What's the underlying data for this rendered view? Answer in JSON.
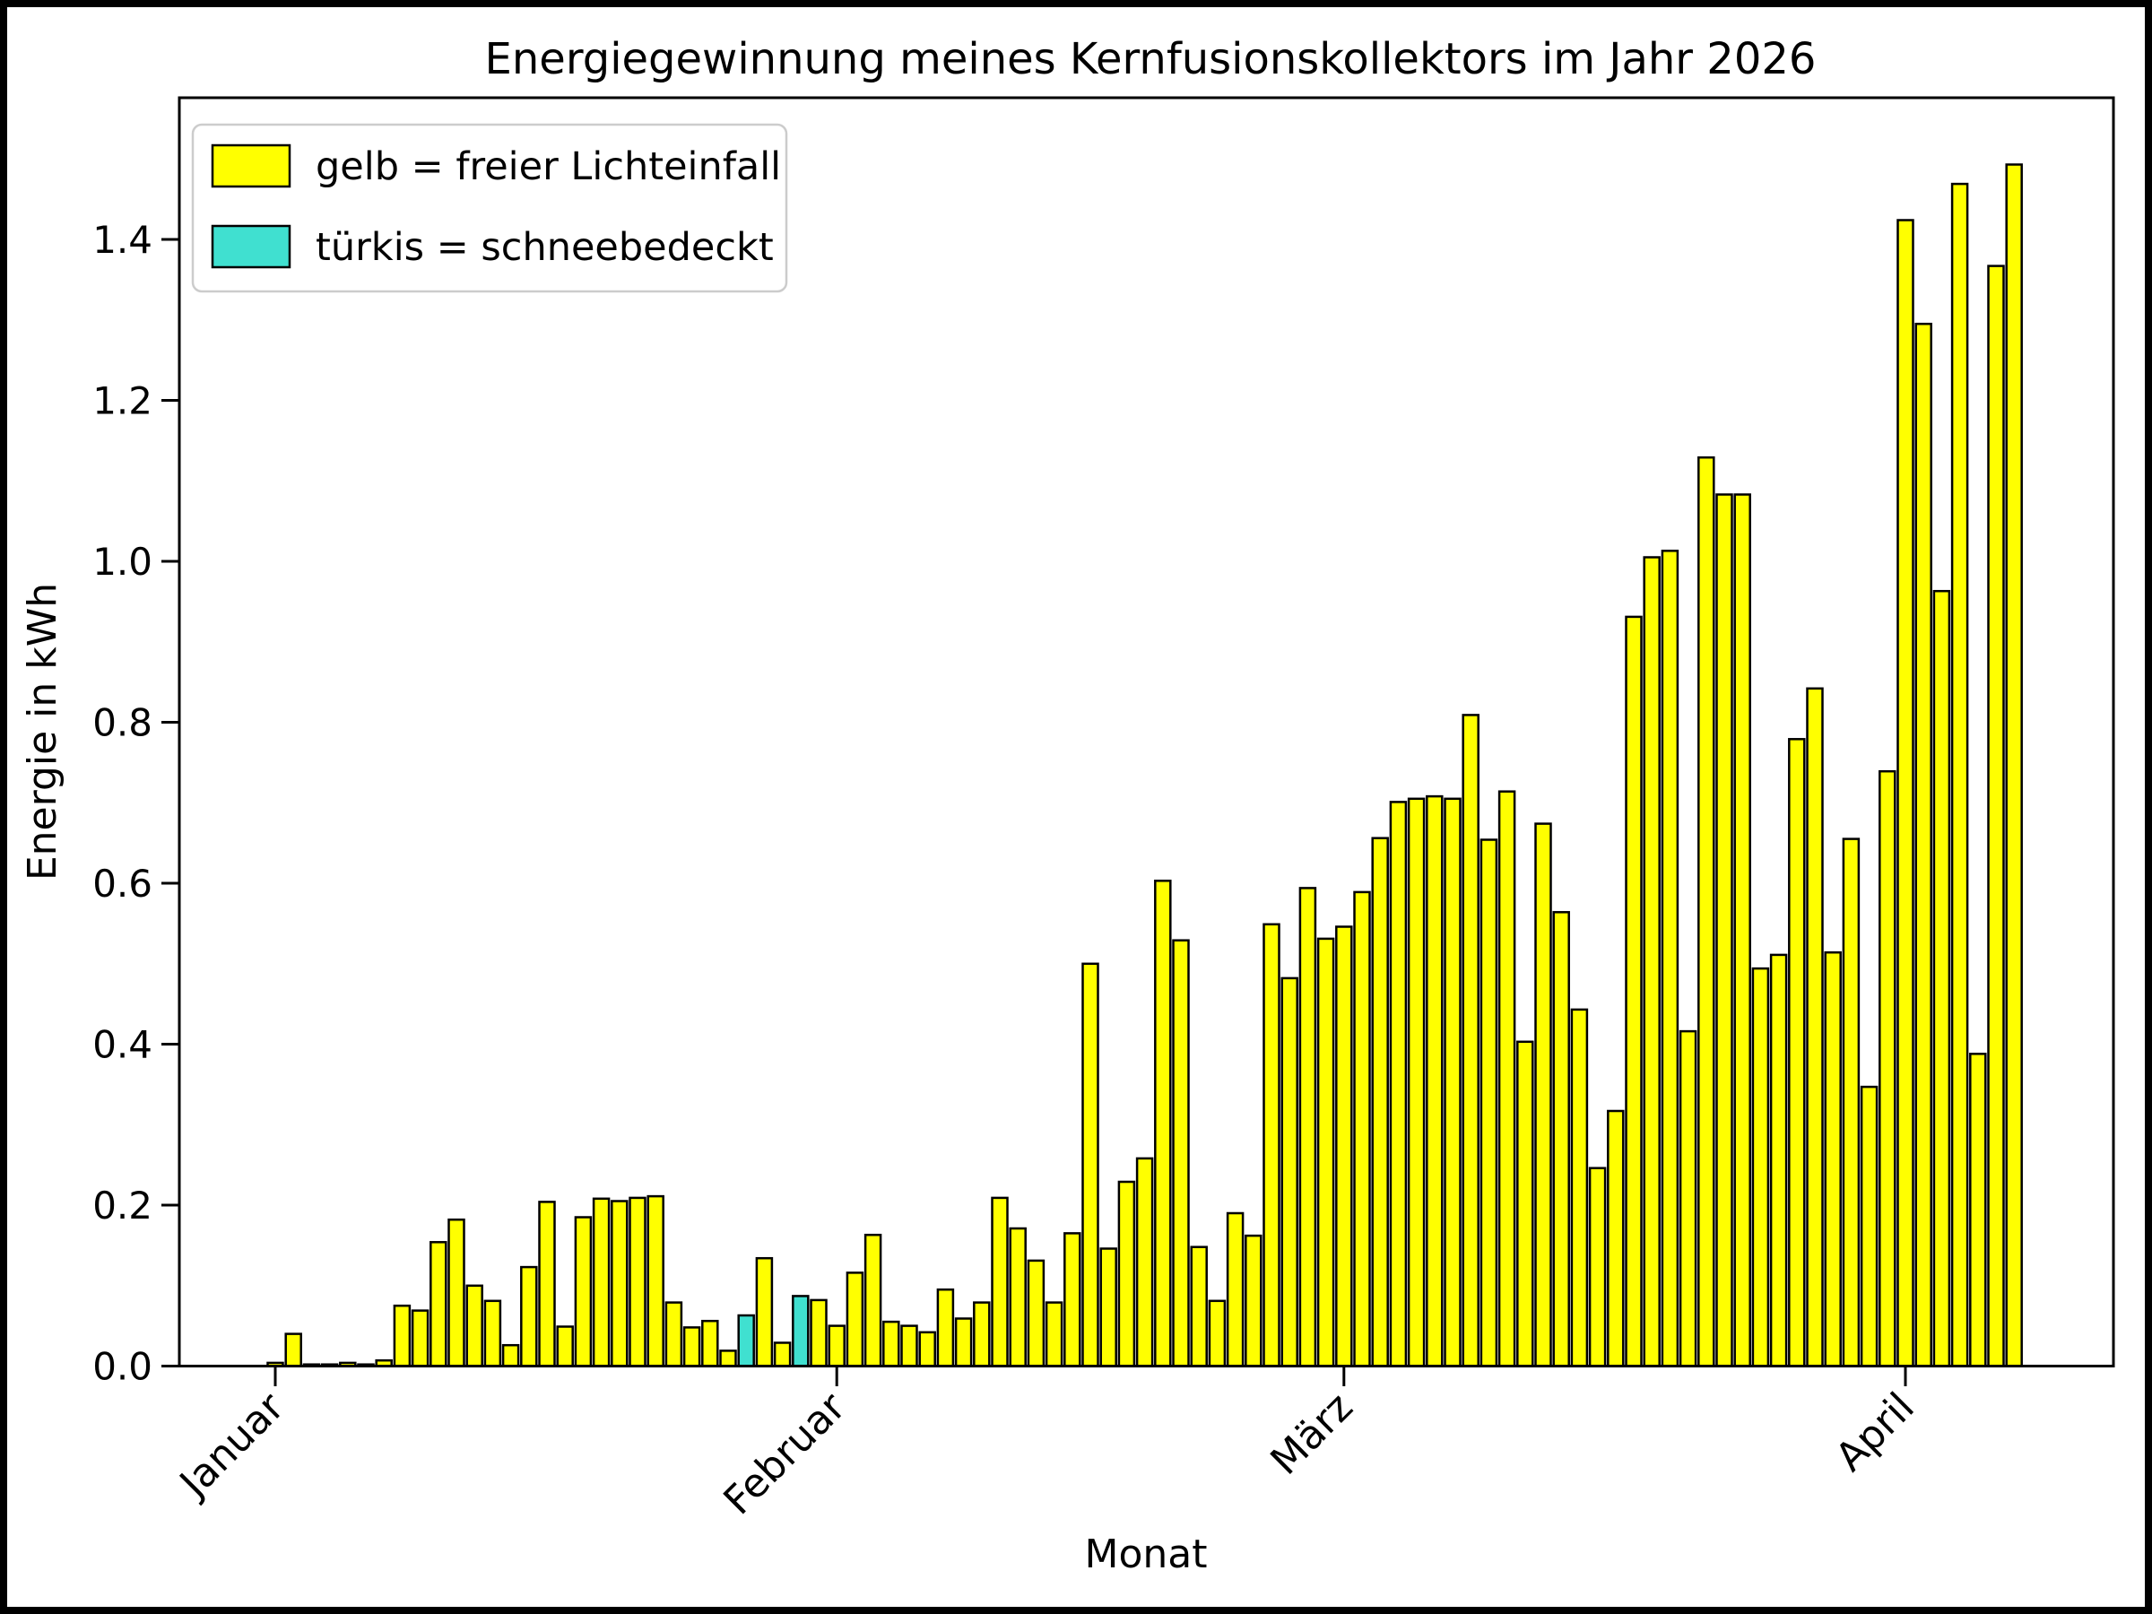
{
  "title": "Energiegewinnung meines Kernfusionskollektors im Jahr 2026",
  "legend": {
    "position": "upper left",
    "items": [
      {
        "label": "gelb = freier Lichteinfall",
        "color": "#ffff00"
      },
      {
        "label": "türkis = schneebedeckt",
        "color": "#40e0d0"
      }
    ]
  },
  "chart_data": {
    "type": "bar",
    "title": "Energiegewinnung meines Kernfusionskollektors im Jahr 2026",
    "xlabel": "Monat",
    "ylabel": "Energie in kWh",
    "x_tick_labels": [
      "Januar",
      "Februar",
      "März",
      "April"
    ],
    "x_tick_day_indices": [
      0,
      31,
      59,
      90
    ],
    "x_tick_rotation_deg": 45,
    "y_ticks": [
      0.0,
      0.2,
      0.4,
      0.6,
      0.8,
      1.0,
      1.2,
      1.4
    ],
    "ylim": [
      0,
      1.576
    ],
    "grid": false,
    "bar_colors": {
      "free_light": "#ffff00",
      "snow_covered": "#40e0d0",
      "edge": "#000000"
    },
    "days_span": "1. Januar bis 7. April (97 Tage)",
    "snow_day_indices": [
      26,
      29
    ],
    "values": [
      0.004,
      0.04,
      0.002,
      0.002,
      0.004,
      0.002,
      0.007,
      0.075,
      0.069,
      0.154,
      0.182,
      0.1,
      0.081,
      0.026,
      0.123,
      0.204,
      0.049,
      0.185,
      0.208,
      0.205,
      0.209,
      0.211,
      0.079,
      0.048,
      0.056,
      0.019,
      0.063,
      0.134,
      0.029,
      0.087,
      0.082,
      0.05,
      0.116,
      0.163,
      0.055,
      0.05,
      0.042,
      0.095,
      0.059,
      0.079,
      0.209,
      0.171,
      0.131,
      0.079,
      0.165,
      0.5,
      0.146,
      0.229,
      0.258,
      0.603,
      0.529,
      0.148,
      0.081,
      0.19,
      0.162,
      0.549,
      0.482,
      0.594,
      0.531,
      0.546,
      0.589,
      0.656,
      0.701,
      0.705,
      0.708,
      0.705,
      0.809,
      0.654,
      0.714,
      0.403,
      0.674,
      0.564,
      0.443,
      0.246,
      0.317,
      0.931,
      1.005,
      1.013,
      0.416,
      1.129,
      1.083,
      1.083,
      0.494,
      0.511,
      0.779,
      0.842,
      0.514,
      0.655,
      0.347,
      0.739,
      1.424,
      1.295,
      0.963,
      1.469,
      0.388,
      1.367,
      1.493
    ]
  }
}
